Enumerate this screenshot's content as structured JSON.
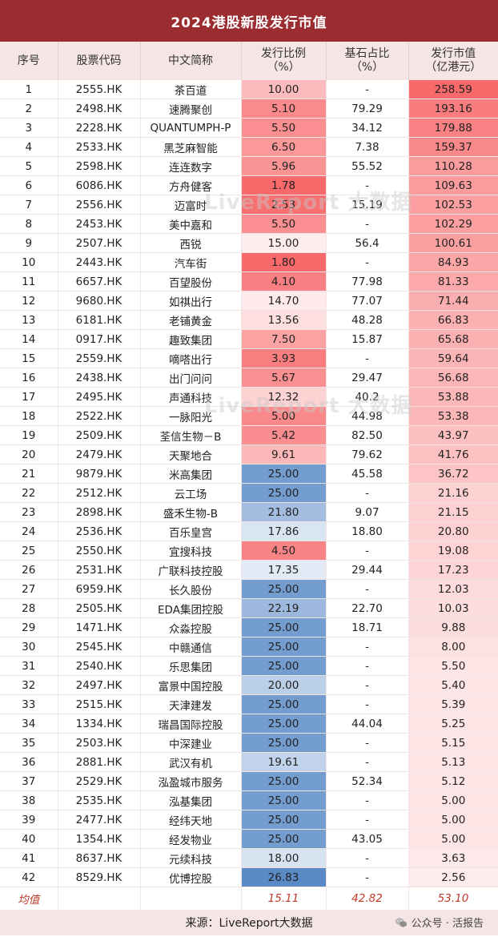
{
  "title": "2024港股新股发行市值",
  "headers": [
    "序号",
    "股票代码",
    "中文简称",
    "发行比例\n（%）",
    "基石占比\n（%）",
    "发行市值\n（亿港元）"
  ],
  "rows": [
    [
      "1",
      "2555.HK",
      "茶百道",
      "10.00",
      "-",
      "258.59"
    ],
    [
      "2",
      "2498.HK",
      "速腾聚创",
      "5.10",
      "79.29",
      "193.16"
    ],
    [
      "3",
      "2228.HK",
      "QUANTUMPH-P",
      "5.50",
      "34.12",
      "179.88"
    ],
    [
      "4",
      "2533.HK",
      "黑芝麻智能",
      "6.50",
      "7.38",
      "159.37"
    ],
    [
      "5",
      "2598.HK",
      "连连数字",
      "5.96",
      "55.52",
      "110.28"
    ],
    [
      "6",
      "6086.HK",
      "方舟健客",
      "1.78",
      "-",
      "109.63"
    ],
    [
      "7",
      "2556.HK",
      "迈富时",
      "2.53",
      "15.19",
      "102.53"
    ],
    [
      "8",
      "2453.HK",
      "美中嘉和",
      "5.50",
      "-",
      "102.29"
    ],
    [
      "9",
      "2507.HK",
      "西锐",
      "15.00",
      "56.4",
      "100.61"
    ],
    [
      "10",
      "2443.HK",
      "汽车街",
      "1.80",
      "-",
      "84.93"
    ],
    [
      "11",
      "6657.HK",
      "百望股份",
      "4.10",
      "77.98",
      "81.33"
    ],
    [
      "12",
      "9680.HK",
      "如祺出行",
      "14.70",
      "77.07",
      "71.44"
    ],
    [
      "13",
      "6181.HK",
      "老铺黄金",
      "13.56",
      "48.28",
      "66.83"
    ],
    [
      "14",
      "0917.HK",
      "趣致集团",
      "7.50",
      "15.87",
      "65.68"
    ],
    [
      "15",
      "2559.HK",
      "嘀嗒出行",
      "3.93",
      "-",
      "59.64"
    ],
    [
      "16",
      "2438.HK",
      "出门问问",
      "5.67",
      "29.47",
      "56.68"
    ],
    [
      "17",
      "2495.HK",
      "声通科技",
      "12.32",
      "40.2",
      "53.88"
    ],
    [
      "18",
      "2522.HK",
      "一脉阳光",
      "5.00",
      "44.98",
      "53.38"
    ],
    [
      "19",
      "2509.HK",
      "荃信生物－B",
      "5.42",
      "82.50",
      "43.97"
    ],
    [
      "20",
      "2479.HK",
      "天聚地合",
      "9.61",
      "79.62",
      "41.76"
    ],
    [
      "21",
      "9879.HK",
      "米高集团",
      "25.00",
      "45.58",
      "36.72"
    ],
    [
      "22",
      "2512.HK",
      "云工场",
      "25.00",
      "-",
      "21.16"
    ],
    [
      "23",
      "2898.HK",
      "盛禾生物-B",
      "21.80",
      "9.07",
      "21.15"
    ],
    [
      "24",
      "2536.HK",
      "百乐皇宫",
      "17.86",
      "18.80",
      "20.80"
    ],
    [
      "25",
      "2550.HK",
      "宜搜科技",
      "4.50",
      "-",
      "19.08"
    ],
    [
      "26",
      "2531.HK",
      "广联科技控股",
      "17.35",
      "29.44",
      "17.23"
    ],
    [
      "27",
      "6959.HK",
      "长久股份",
      "25.00",
      "-",
      "12.03"
    ],
    [
      "28",
      "2505.HK",
      "EDA集团控股",
      "22.19",
      "22.70",
      "10.03"
    ],
    [
      "29",
      "1471.HK",
      "众淼控股",
      "25.00",
      "18.71",
      "9.88"
    ],
    [
      "30",
      "2545.HK",
      "中赣通信",
      "25.00",
      "-",
      "8.00"
    ],
    [
      "31",
      "2540.HK",
      "乐思集团",
      "25.00",
      "-",
      "5.50"
    ],
    [
      "32",
      "2497.HK",
      "富景中国控股",
      "20.00",
      "-",
      "5.40"
    ],
    [
      "33",
      "2515.HK",
      "天津建发",
      "25.00",
      "-",
      "5.39"
    ],
    [
      "34",
      "1334.HK",
      "瑞昌国际控股",
      "25.00",
      "44.04",
      "5.25"
    ],
    [
      "35",
      "2503.HK",
      "中深建业",
      "25.00",
      "-",
      "5.15"
    ],
    [
      "36",
      "2881.HK",
      "武汉有机",
      "19.61",
      "-",
      "5.13"
    ],
    [
      "37",
      "2529.HK",
      "泓盈城市服务",
      "25.00",
      "52.34",
      "5.12"
    ],
    [
      "38",
      "2535.HK",
      "泓基集团",
      "25.00",
      "-",
      "5.00"
    ],
    [
      "39",
      "2477.HK",
      "经纬天地",
      "25.00",
      "-",
      "5.00"
    ],
    [
      "40",
      "1354.HK",
      "经发物业",
      "25.00",
      "43.05",
      "5.00"
    ],
    [
      "41",
      "8637.HK",
      "元续科技",
      "18.00",
      "-",
      "3.63"
    ],
    [
      "42",
      "8529.HK",
      "优博控股",
      "26.83",
      "-",
      "2.56"
    ]
  ],
  "averages": {
    "label": "均值",
    "ratio": "15.11",
    "cornerstone": "42.82",
    "market_value": "53.10"
  },
  "footer": {
    "source": "来源：LiveReport大数据",
    "wechat": "公众号 · 活报告"
  },
  "watermark": "LiveReport 大数据",
  "colors": {
    "header_bg": "#9b2d31",
    "subheader_bg": "#f6e5e5",
    "red_scale": "#f8696b",
    "blue_scale": "#5a8ac6",
    "average_text": "#c0392b"
  }
}
